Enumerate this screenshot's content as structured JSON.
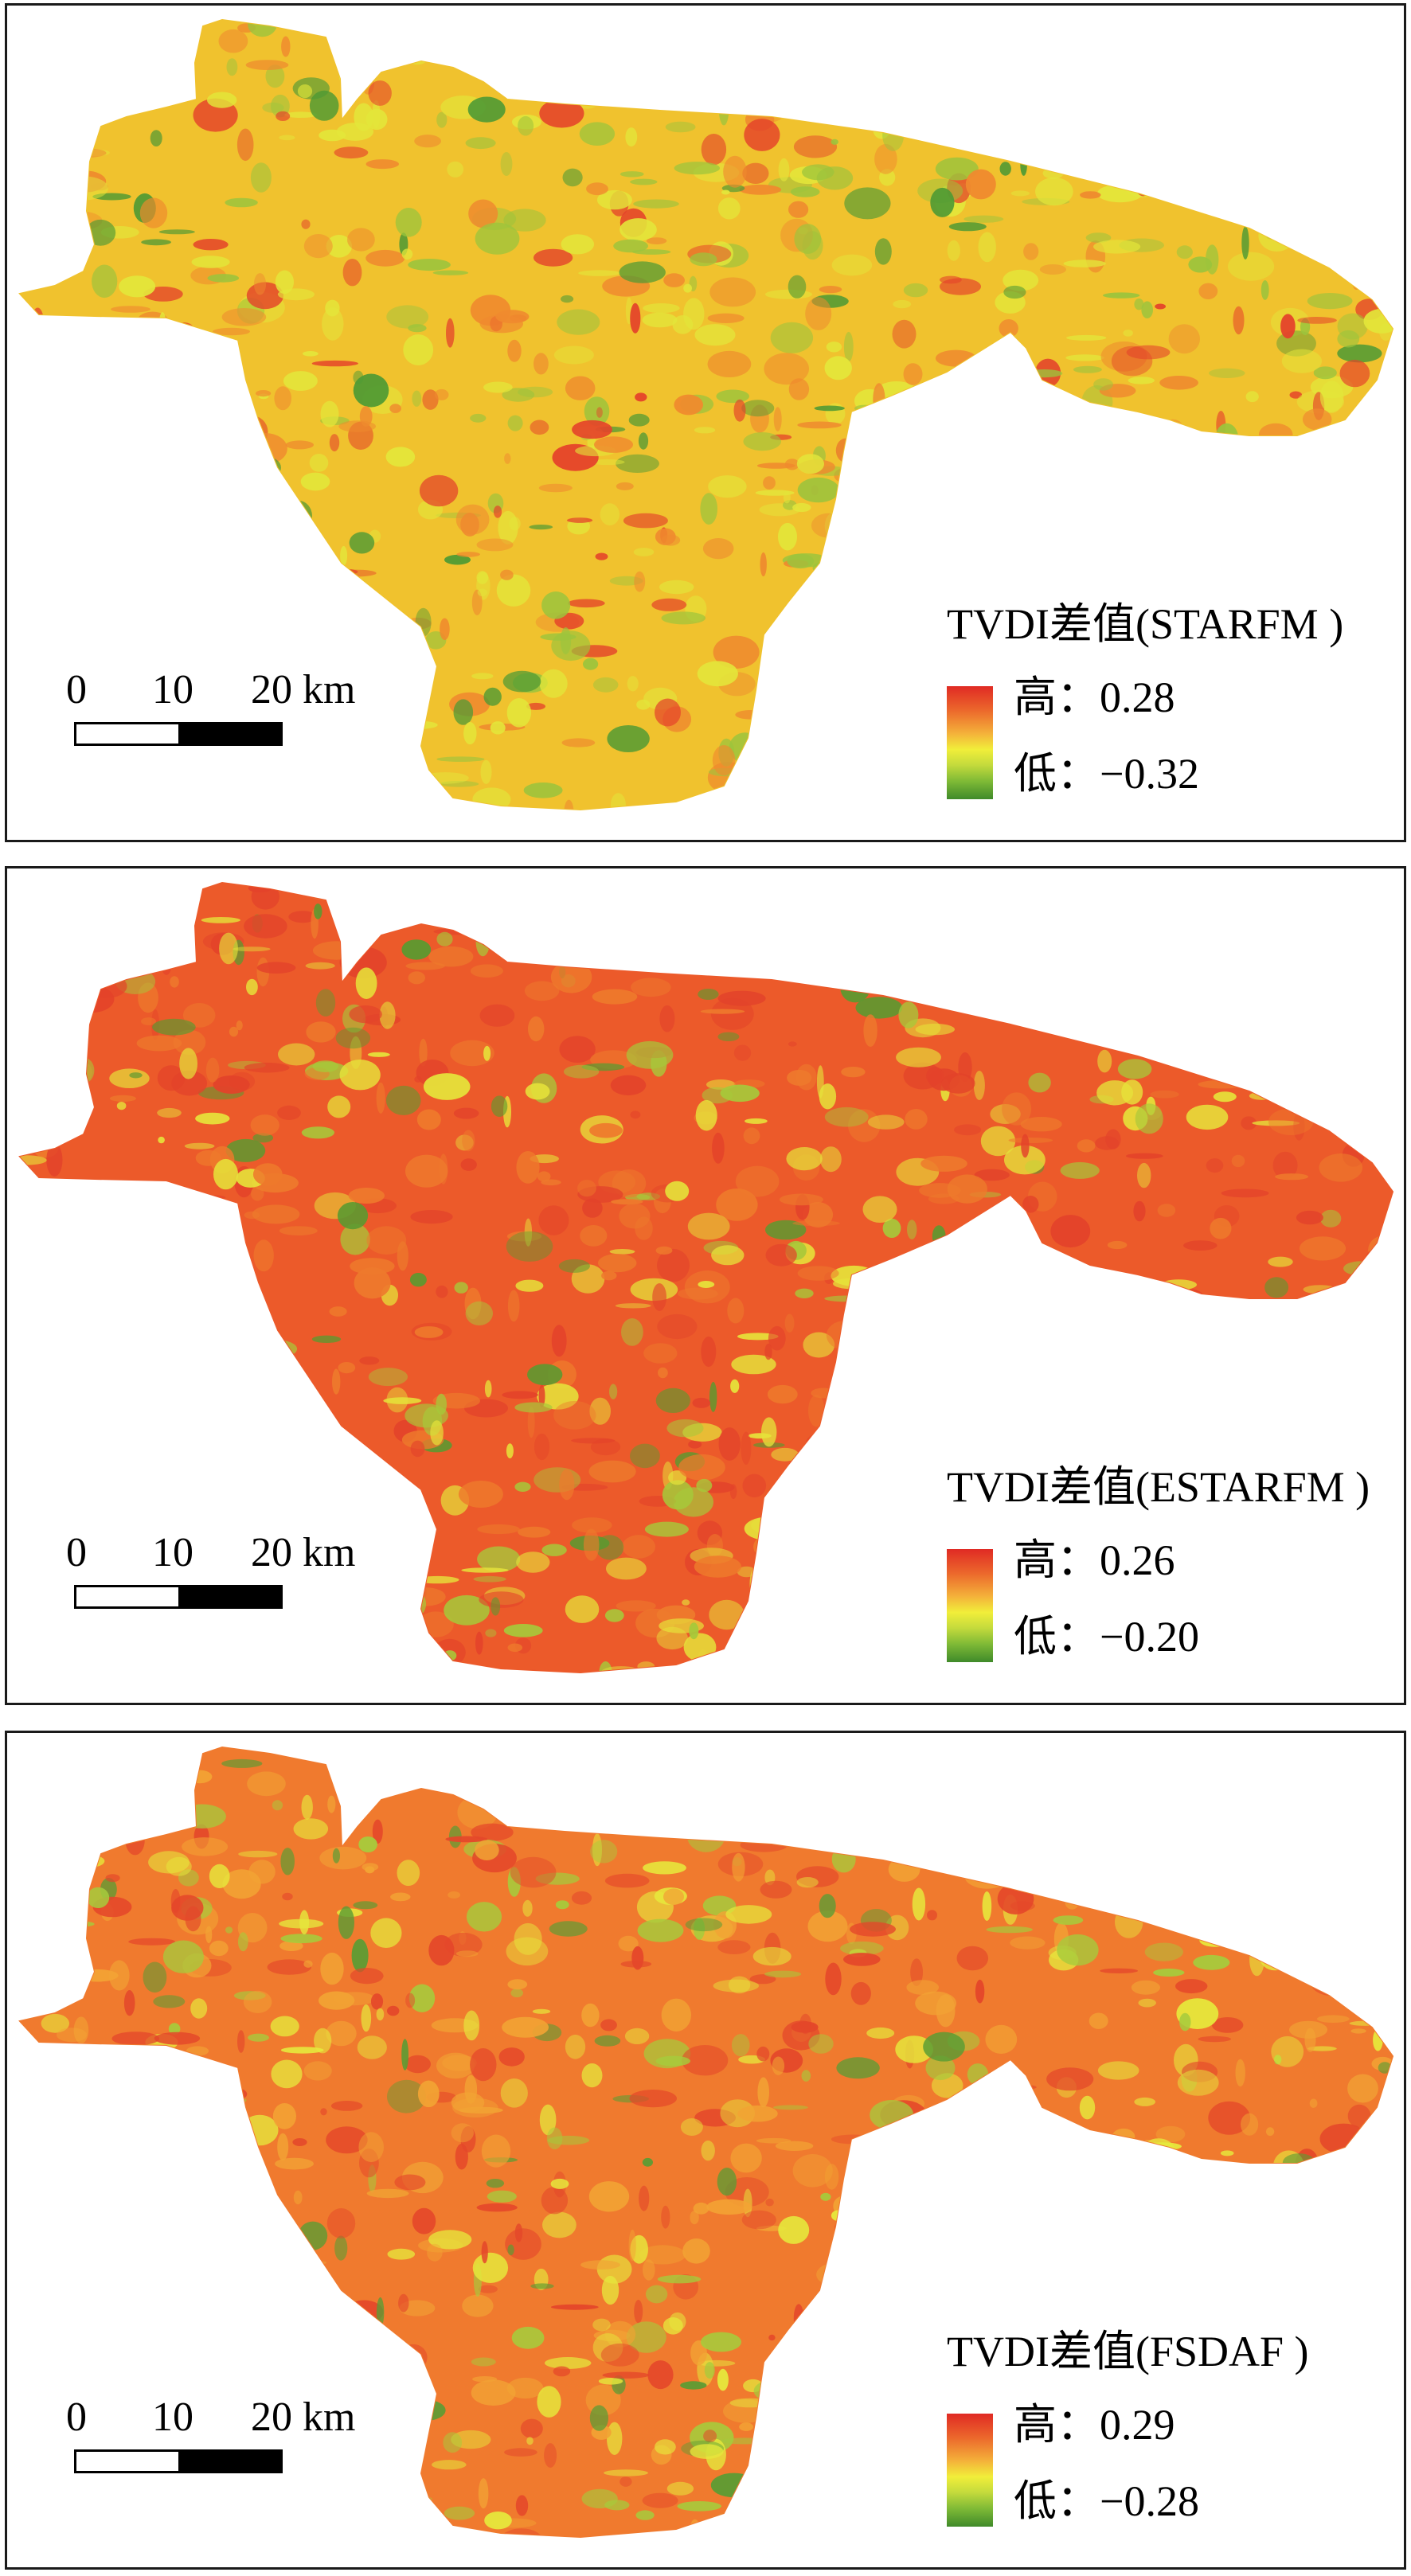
{
  "panels": [
    {
      "legend": {
        "title": "TVDI差值(STARFM )",
        "high_label": "高：",
        "high_value": "0.28",
        "low_label": "低：",
        "low_value": "−0.32"
      },
      "scale": {
        "labels": [
          "0",
          "10",
          "20 km"
        ]
      },
      "palette": {
        "base": "#f0c22e",
        "orange": "#ef8a2e",
        "red": "#e4422a",
        "yellow": "#e3e63a",
        "green": "#9cc43c",
        "dark_green": "#4f9a34"
      }
    },
    {
      "legend": {
        "title": "TVDI差值(ESTARFM )",
        "high_label": "高：",
        "high_value": "0.26",
        "low_label": "低：",
        "low_value": "−0.20"
      },
      "scale": {
        "labels": [
          "0",
          "10",
          "20 km"
        ]
      },
      "palette": {
        "base": "#ec5a2a",
        "orange": "#ee7a2c",
        "red": "#e3432a",
        "yellow": "#e6e23a",
        "green": "#a7c83a",
        "dark_green": "#5a9a30"
      }
    },
    {
      "legend": {
        "title": "TVDI差值(FSDAF )",
        "high_label": "高：",
        "high_value": "0.29",
        "low_label": "低：",
        "low_value": "−0.28"
      },
      "scale": {
        "labels": [
          "0",
          "10",
          "20 km"
        ]
      },
      "palette": {
        "base": "#f07a2e",
        "orange": "#f2a334",
        "red": "#e4472a",
        "yellow": "#e6e83c",
        "green": "#a6cb3c",
        "dark_green": "#5a9c34"
      }
    }
  ]
}
